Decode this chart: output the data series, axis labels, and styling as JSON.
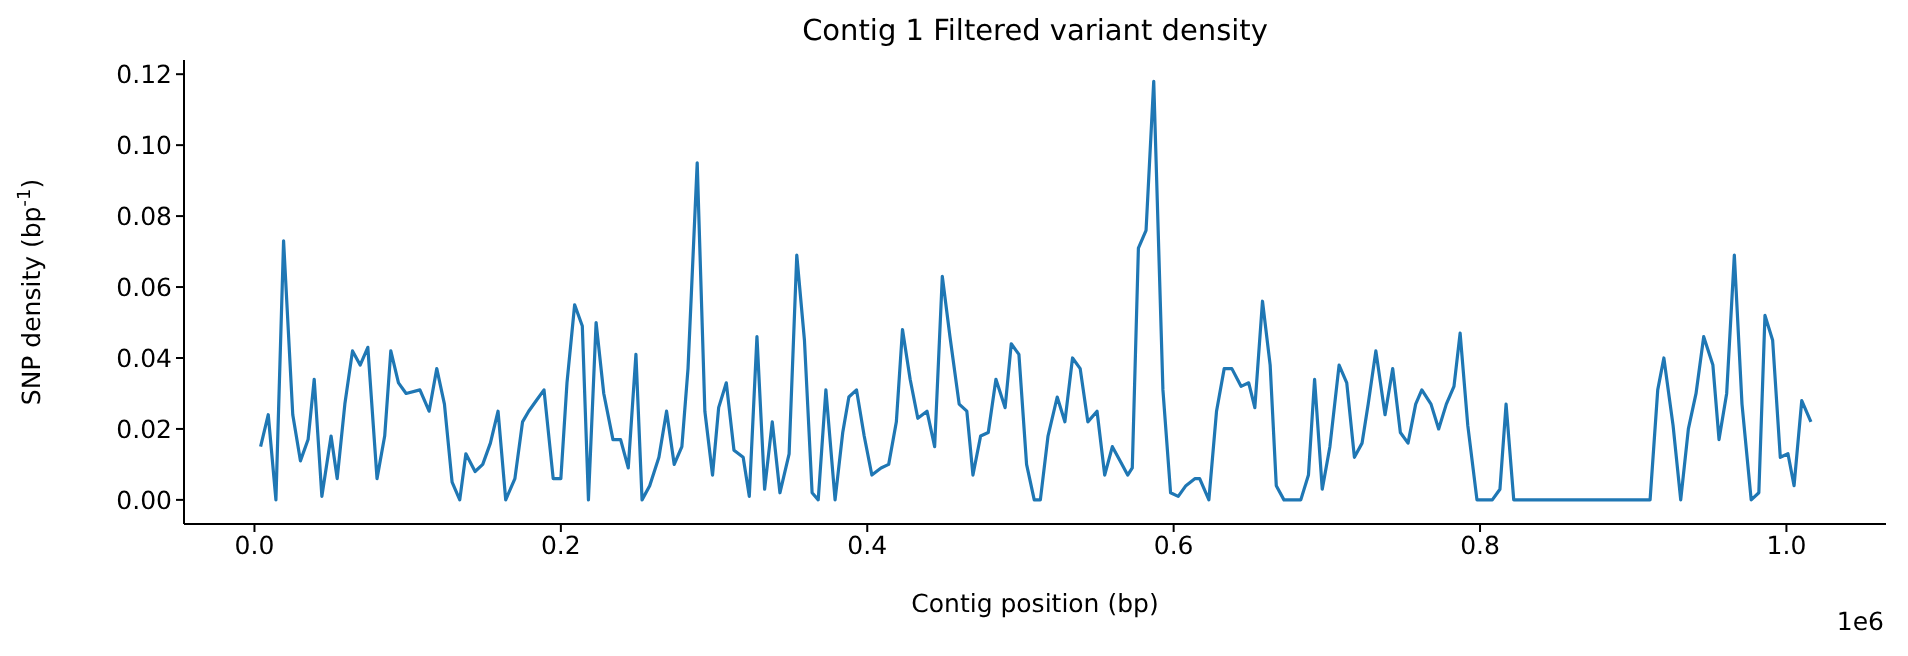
{
  "chart_data": {
    "type": "line",
    "title": "Contig 1 Filtered variant density",
    "xlabel": "Contig position (bp)",
    "ylabel": "SNP density (bp$^{-1}$)",
    "annotations": [
      "1e6"
    ],
    "x": [
      0.004,
      0.009,
      0.014,
      0.019,
      0.025,
      0.03,
      0.035,
      0.039,
      0.044,
      0.05,
      0.054,
      0.059,
      0.064,
      0.069,
      0.074,
      0.08,
      0.085,
      0.089,
      0.094,
      0.099,
      0.108,
      0.114,
      0.119,
      0.124,
      0.129,
      0.134,
      0.138,
      0.144,
      0.149,
      0.154,
      0.159,
      0.164,
      0.17,
      0.175,
      0.179,
      0.184,
      0.189,
      0.195,
      0.2,
      0.204,
      0.209,
      0.214,
      0.218,
      0.223,
      0.228,
      0.234,
      0.239,
      0.244,
      0.249,
      0.253,
      0.258,
      0.264,
      0.269,
      0.274,
      0.279,
      0.283,
      0.289,
      0.294,
      0.299,
      0.303,
      0.308,
      0.313,
      0.319,
      0.323,
      0.328,
      0.333,
      0.338,
      0.343,
      0.349,
      0.354,
      0.359,
      0.364,
      0.368,
      0.373,
      0.379,
      0.384,
      0.388,
      0.393,
      0.398,
      0.403,
      0.409,
      0.414,
      0.419,
      0.423,
      0.428,
      0.433,
      0.439,
      0.444,
      0.449,
      0.454,
      0.46,
      0.465,
      0.469,
      0.474,
      0.479,
      0.484,
      0.49,
      0.494,
      0.499,
      0.504,
      0.509,
      0.513,
      0.518,
      0.524,
      0.529,
      0.534,
      0.539,
      0.544,
      0.55,
      0.555,
      0.56,
      0.565,
      0.57,
      0.573,
      0.577,
      0.582,
      0.587,
      0.593,
      0.598,
      0.603,
      0.608,
      0.614,
      0.617,
      0.623,
      0.628,
      0.633,
      0.638,
      0.644,
      0.649,
      0.653,
      0.658,
      0.663,
      0.667,
      0.672,
      0.683,
      0.688,
      0.692,
      0.697,
      0.702,
      0.708,
      0.713,
      0.718,
      0.723,
      0.727,
      0.732,
      0.738,
      0.743,
      0.748,
      0.753,
      0.758,
      0.762,
      0.768,
      0.773,
      0.778,
      0.783,
      0.787,
      0.792,
      0.798,
      0.808,
      0.813,
      0.817,
      0.822,
      0.911,
      0.916,
      0.92,
      0.926,
      0.931,
      0.936,
      0.941,
      0.946,
      0.952,
      0.956,
      0.961,
      0.966,
      0.971,
      0.977,
      0.982,
      0.986,
      0.991,
      0.996,
      1.001,
      1.005,
      1.01,
      1.016
    ],
    "series": [
      {
        "color": "#1f77b4",
        "values": [
          0.015,
          0.024,
          0.0,
          0.073,
          0.024,
          0.011,
          0.017,
          0.034,
          0.001,
          0.018,
          0.006,
          0.027,
          0.042,
          0.038,
          0.043,
          0.006,
          0.018,
          0.042,
          0.033,
          0.03,
          0.031,
          0.025,
          0.037,
          0.027,
          0.005,
          0.0,
          0.013,
          0.008,
          0.01,
          0.016,
          0.025,
          0.0,
          0.006,
          0.022,
          0.025,
          0.028,
          0.031,
          0.006,
          0.006,
          0.033,
          0.055,
          0.049,
          0.0,
          0.05,
          0.03,
          0.017,
          0.017,
          0.009,
          0.041,
          0.0,
          0.004,
          0.012,
          0.025,
          0.01,
          0.015,
          0.037,
          0.095,
          0.025,
          0.007,
          0.026,
          0.033,
          0.014,
          0.012,
          0.001,
          0.046,
          0.003,
          0.022,
          0.002,
          0.013,
          0.069,
          0.045,
          0.002,
          0.0,
          0.031,
          0.0,
          0.019,
          0.029,
          0.031,
          0.018,
          0.007,
          0.009,
          0.01,
          0.022,
          0.048,
          0.034,
          0.023,
          0.025,
          0.015,
          0.063,
          0.046,
          0.027,
          0.025,
          0.007,
          0.018,
          0.019,
          0.034,
          0.026,
          0.044,
          0.041,
          0.01,
          0.0,
          0.0,
          0.018,
          0.029,
          0.022,
          0.04,
          0.037,
          0.022,
          0.025,
          0.007,
          0.015,
          0.011,
          0.007,
          0.009,
          0.071,
          0.076,
          0.118,
          0.031,
          0.002,
          0.001,
          0.004,
          0.006,
          0.006,
          0.0,
          0.025,
          0.037,
          0.037,
          0.032,
          0.033,
          0.026,
          0.056,
          0.038,
          0.004,
          0.0,
          0.0,
          0.007,
          0.034,
          0.003,
          0.015,
          0.038,
          0.033,
          0.012,
          0.016,
          0.027,
          0.042,
          0.024,
          0.037,
          0.019,
          0.016,
          0.027,
          0.031,
          0.027,
          0.02,
          0.027,
          0.032,
          0.047,
          0.021,
          0.0,
          0.0,
          0.003,
          0.027,
          0.0,
          0.0,
          0.031,
          0.04,
          0.021,
          0.0,
          0.02,
          0.03,
          0.046,
          0.038,
          0.017,
          0.03,
          0.069,
          0.027,
          0.0,
          0.002,
          0.052,
          0.045,
          0.012,
          0.013,
          0.004,
          0.028,
          0.022
        ]
      }
    ],
    "xlim": [
      -0.046,
      1.065
    ],
    "xticks": [
      {
        "value": 0,
        "label": "0.0"
      },
      {
        "value": 0.2,
        "label": "0.2"
      },
      {
        "value": 0.4,
        "label": "0.4"
      },
      {
        "value": 0.6,
        "label": "0.6"
      },
      {
        "value": 0.8,
        "label": "0.8"
      },
      {
        "value": 1,
        "label": "1.0"
      }
    ],
    "ylim": [
      -0.0068,
      0.124
    ],
    "yticks": [
      {
        "value": 0,
        "label": "0.00"
      },
      {
        "value": 0.02,
        "label": "0.02"
      },
      {
        "value": 0.04,
        "label": "0.04"
      },
      {
        "value": 0.06,
        "label": "0.06"
      },
      {
        "value": 0.08,
        "label": "0.08"
      },
      {
        "value": 0.1,
        "label": "0.10"
      },
      {
        "value": 0.12,
        "label": "0.12"
      }
    ],
    "grid": false,
    "marker": "none",
    "line_style": "solid"
  }
}
